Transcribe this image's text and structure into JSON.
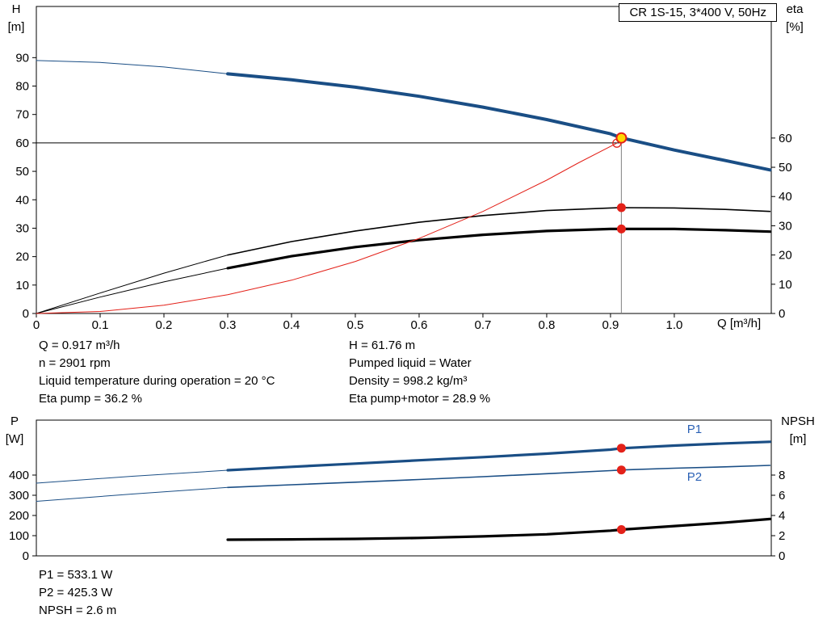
{
  "title_box": "CR 1S-15, 3*400 V, 50Hz",
  "info_top": {
    "left": [
      "Q = 0.917 m³/h",
      "n = 2901 rpm",
      "Liquid temperature during operation = 20 °C",
      "Eta pump = 36.2 %"
    ],
    "right": [
      "H = 61.76 m",
      "Pumped liquid = Water",
      "Density = 998.2 kg/m³",
      "Eta pump+motor = 28.9 %"
    ]
  },
  "info_bottom": [
    "P1 = 533.1 W",
    "P2 = 425.3 W",
    "NPSH = 2.6 m"
  ],
  "colors": {
    "curve_blue": "#1a4e85",
    "label_blue": "#2b61b5",
    "curve_black": "#000000",
    "curve_red": "#e32119",
    "marker_red": "#e32119",
    "marker_yellow": "#ffd800",
    "duty_line_gray": "#808080"
  },
  "chart_data": [
    {
      "id": "head-eta-chart",
      "type": "line",
      "title": "CR 1S-15, 3*400 V, 50Hz",
      "grid": false,
      "x_axis": {
        "title": "Q [m³/h]",
        "range": [
          0,
          1.152
        ],
        "ticks": {
          "values": [
            0,
            0.1,
            0.2,
            0.3,
            0.4,
            0.5,
            0.6,
            0.7,
            0.8,
            0.9,
            1.0
          ],
          "labels": [
            "0",
            "0.1",
            "0.2",
            "0.3",
            "0.4",
            "0.5",
            "0.6",
            "0.7",
            "0.8",
            "0.9",
            "1.0"
          ]
        }
      },
      "left_axis": {
        "title": "H",
        "unit": "[m]",
        "range": [
          0,
          108
        ],
        "ticks": {
          "values": [
            0,
            10,
            20,
            30,
            40,
            50,
            60,
            70,
            80,
            90
          ],
          "labels": [
            "0",
            "10",
            "20",
            "30",
            "40",
            "50",
            "60",
            "70",
            "80",
            "90"
          ]
        }
      },
      "right_axis": {
        "title": "eta",
        "unit": "[%]",
        "range": [
          0,
          105
        ],
        "ticks": {
          "values": [
            0,
            10,
            20,
            30,
            40,
            50,
            60
          ],
          "labels": [
            "0",
            "10",
            "20",
            "30",
            "40",
            "50",
            "60"
          ]
        }
      },
      "duty_lines": {
        "h": 60,
        "to_q": 0.917,
        "q": 0.917,
        "to_h": 61.76
      },
      "series": [
        {
          "name": "head-curve-extension",
          "axis": "left",
          "color": "curve_blue",
          "width": 1,
          "points": [
            [
              0,
              89
            ],
            [
              0.1,
              88.3
            ],
            [
              0.2,
              86.7
            ],
            [
              0.3,
              84.3
            ]
          ]
        },
        {
          "name": "head-curve",
          "axis": "left",
          "color": "curve_blue",
          "width": 4,
          "points": [
            [
              0.3,
              84.3
            ],
            [
              0.4,
              82.2
            ],
            [
              0.5,
              79.6
            ],
            [
              0.6,
              76.4
            ],
            [
              0.7,
              72.6
            ],
            [
              0.8,
              68.2
            ],
            [
              0.9,
              63.2
            ],
            [
              0.917,
              61.76
            ],
            [
              1.0,
              57.5
            ],
            [
              1.08,
              53.8
            ],
            [
              1.15,
              50.5
            ]
          ]
        },
        {
          "name": "eta-pump-extension",
          "axis": "right",
          "color": "curve_black",
          "width": 1,
          "points": [
            [
              0,
              0
            ],
            [
              0.1,
              7.0
            ],
            [
              0.2,
              13.8
            ],
            [
              0.3,
              20.0
            ]
          ]
        },
        {
          "name": "eta-pump-curve",
          "axis": "right",
          "color": "curve_black",
          "width": 1.6,
          "points": [
            [
              0.3,
              20.0
            ],
            [
              0.4,
              24.6
            ],
            [
              0.5,
              28.2
            ],
            [
              0.6,
              31.2
            ],
            [
              0.7,
              33.5
            ],
            [
              0.8,
              35.2
            ],
            [
              0.9,
              36.1
            ],
            [
              0.917,
              36.2
            ],
            [
              1.0,
              36.1
            ],
            [
              1.08,
              35.6
            ],
            [
              1.15,
              34.9
            ]
          ]
        },
        {
          "name": "eta-pump-motor-extension",
          "axis": "right",
          "color": "curve_black",
          "width": 1,
          "points": [
            [
              0,
              0
            ],
            [
              0.1,
              5.6
            ],
            [
              0.2,
              10.8
            ],
            [
              0.3,
              15.5
            ]
          ]
        },
        {
          "name": "eta-pump-motor-curve",
          "axis": "right",
          "color": "curve_black",
          "width": 3.2,
          "points": [
            [
              0.3,
              15.5
            ],
            [
              0.4,
              19.6
            ],
            [
              0.5,
              22.7
            ],
            [
              0.6,
              25.1
            ],
            [
              0.7,
              26.9
            ],
            [
              0.8,
              28.2
            ],
            [
              0.9,
              28.9
            ],
            [
              0.917,
              28.9
            ],
            [
              1.0,
              28.9
            ],
            [
              1.08,
              28.5
            ],
            [
              1.15,
              28.0
            ]
          ]
        },
        {
          "name": "system-curve",
          "axis": "left",
          "color": "curve_red",
          "width": 1,
          "points": [
            [
              0,
              0
            ],
            [
              0.1,
              0.7
            ],
            [
              0.2,
              2.9
            ],
            [
              0.3,
              6.6
            ],
            [
              0.4,
              11.7
            ],
            [
              0.5,
              18.3
            ],
            [
              0.6,
              26.4
            ],
            [
              0.7,
              35.9
            ],
            [
              0.8,
              46.9
            ],
            [
              0.85,
              53.0
            ],
            [
              0.91,
              59.9
            ]
          ]
        }
      ],
      "markers": [
        {
          "name": "system-curve-end-point",
          "axis": "left",
          "q": 0.91,
          "v": 59.9,
          "style": "open"
        },
        {
          "name": "duty-point-head",
          "axis": "left",
          "q": 0.917,
          "v": 61.76,
          "style": "yellow"
        },
        {
          "name": "duty-point-eta-pump",
          "axis": "right",
          "q": 0.917,
          "v": 36.2,
          "style": "red"
        },
        {
          "name": "duty-point-eta-pump-motor",
          "axis": "right",
          "q": 0.917,
          "v": 28.9,
          "style": "red"
        }
      ]
    },
    {
      "id": "power-npsh-chart",
      "type": "line",
      "title": "",
      "grid": false,
      "x_axis": {
        "title": "",
        "range": [
          0,
          1.152
        ],
        "ticks": {
          "values": [],
          "labels": []
        }
      },
      "left_axis": {
        "title": "P",
        "unit": "[W]",
        "range": [
          0,
          672
        ],
        "ticks": {
          "values": [
            0,
            100,
            200,
            300,
            400
          ],
          "labels": [
            "0",
            "100",
            "200",
            "300",
            "400"
          ]
        }
      },
      "right_axis": {
        "title": "NPSH",
        "unit": "[m]",
        "range": [
          0,
          13.44
        ],
        "ticks": {
          "values": [
            0,
            2,
            4,
            6,
            8
          ],
          "labels": [
            "0",
            "2",
            "4",
            "6",
            "8"
          ]
        }
      },
      "series": [
        {
          "name": "p1-curve-extension",
          "axis": "left",
          "color": "curve_blue",
          "width": 1,
          "points": [
            [
              0,
              360
            ],
            [
              0.15,
              394
            ],
            [
              0.3,
              424
            ]
          ]
        },
        {
          "name": "p1-curve",
          "axis": "left",
          "color": "curve_blue",
          "width": 3.2,
          "label": "P1",
          "label_pos": [
            1.02,
            608
          ],
          "points": [
            [
              0.3,
              424
            ],
            [
              0.4,
              441
            ],
            [
              0.5,
              457
            ],
            [
              0.6,
              473
            ],
            [
              0.7,
              489
            ],
            [
              0.8,
              506
            ],
            [
              0.9,
              526
            ],
            [
              0.917,
              533
            ],
            [
              1.0,
              546
            ],
            [
              1.08,
              557
            ],
            [
              1.15,
              565
            ]
          ]
        },
        {
          "name": "p2-curve-extension",
          "axis": "left",
          "color": "curve_blue",
          "width": 1,
          "points": [
            [
              0,
              270
            ],
            [
              0.15,
              306
            ],
            [
              0.3,
              339
            ]
          ]
        },
        {
          "name": "p2-curve",
          "axis": "left",
          "color": "curve_blue",
          "width": 1.6,
          "label": "P2",
          "label_pos": [
            1.02,
            372
          ],
          "points": [
            [
              0.3,
              339
            ],
            [
              0.4,
              352
            ],
            [
              0.5,
              365
            ],
            [
              0.6,
              378
            ],
            [
              0.7,
              392
            ],
            [
              0.8,
              407
            ],
            [
              0.9,
              422
            ],
            [
              0.917,
              425.3
            ],
            [
              1.0,
              434
            ],
            [
              1.08,
              441
            ],
            [
              1.15,
              448
            ]
          ]
        },
        {
          "name": "npsh-curve",
          "axis": "right",
          "color": "curve_black",
          "width": 3.2,
          "points": [
            [
              0.3,
              1.6
            ],
            [
              0.4,
              1.63
            ],
            [
              0.5,
              1.68
            ],
            [
              0.6,
              1.78
            ],
            [
              0.7,
              1.93
            ],
            [
              0.8,
              2.14
            ],
            [
              0.9,
              2.5
            ],
            [
              0.917,
              2.6
            ],
            [
              1.0,
              2.95
            ],
            [
              1.08,
              3.3
            ],
            [
              1.15,
              3.65
            ]
          ]
        }
      ],
      "markers": [
        {
          "name": "duty-point-p1",
          "axis": "left",
          "q": 0.917,
          "v": 533.1,
          "style": "red"
        },
        {
          "name": "duty-point-p2",
          "axis": "left",
          "q": 0.917,
          "v": 425.3,
          "style": "red"
        },
        {
          "name": "duty-point-npsh",
          "axis": "right",
          "q": 0.917,
          "v": 2.6,
          "style": "red"
        }
      ]
    }
  ]
}
